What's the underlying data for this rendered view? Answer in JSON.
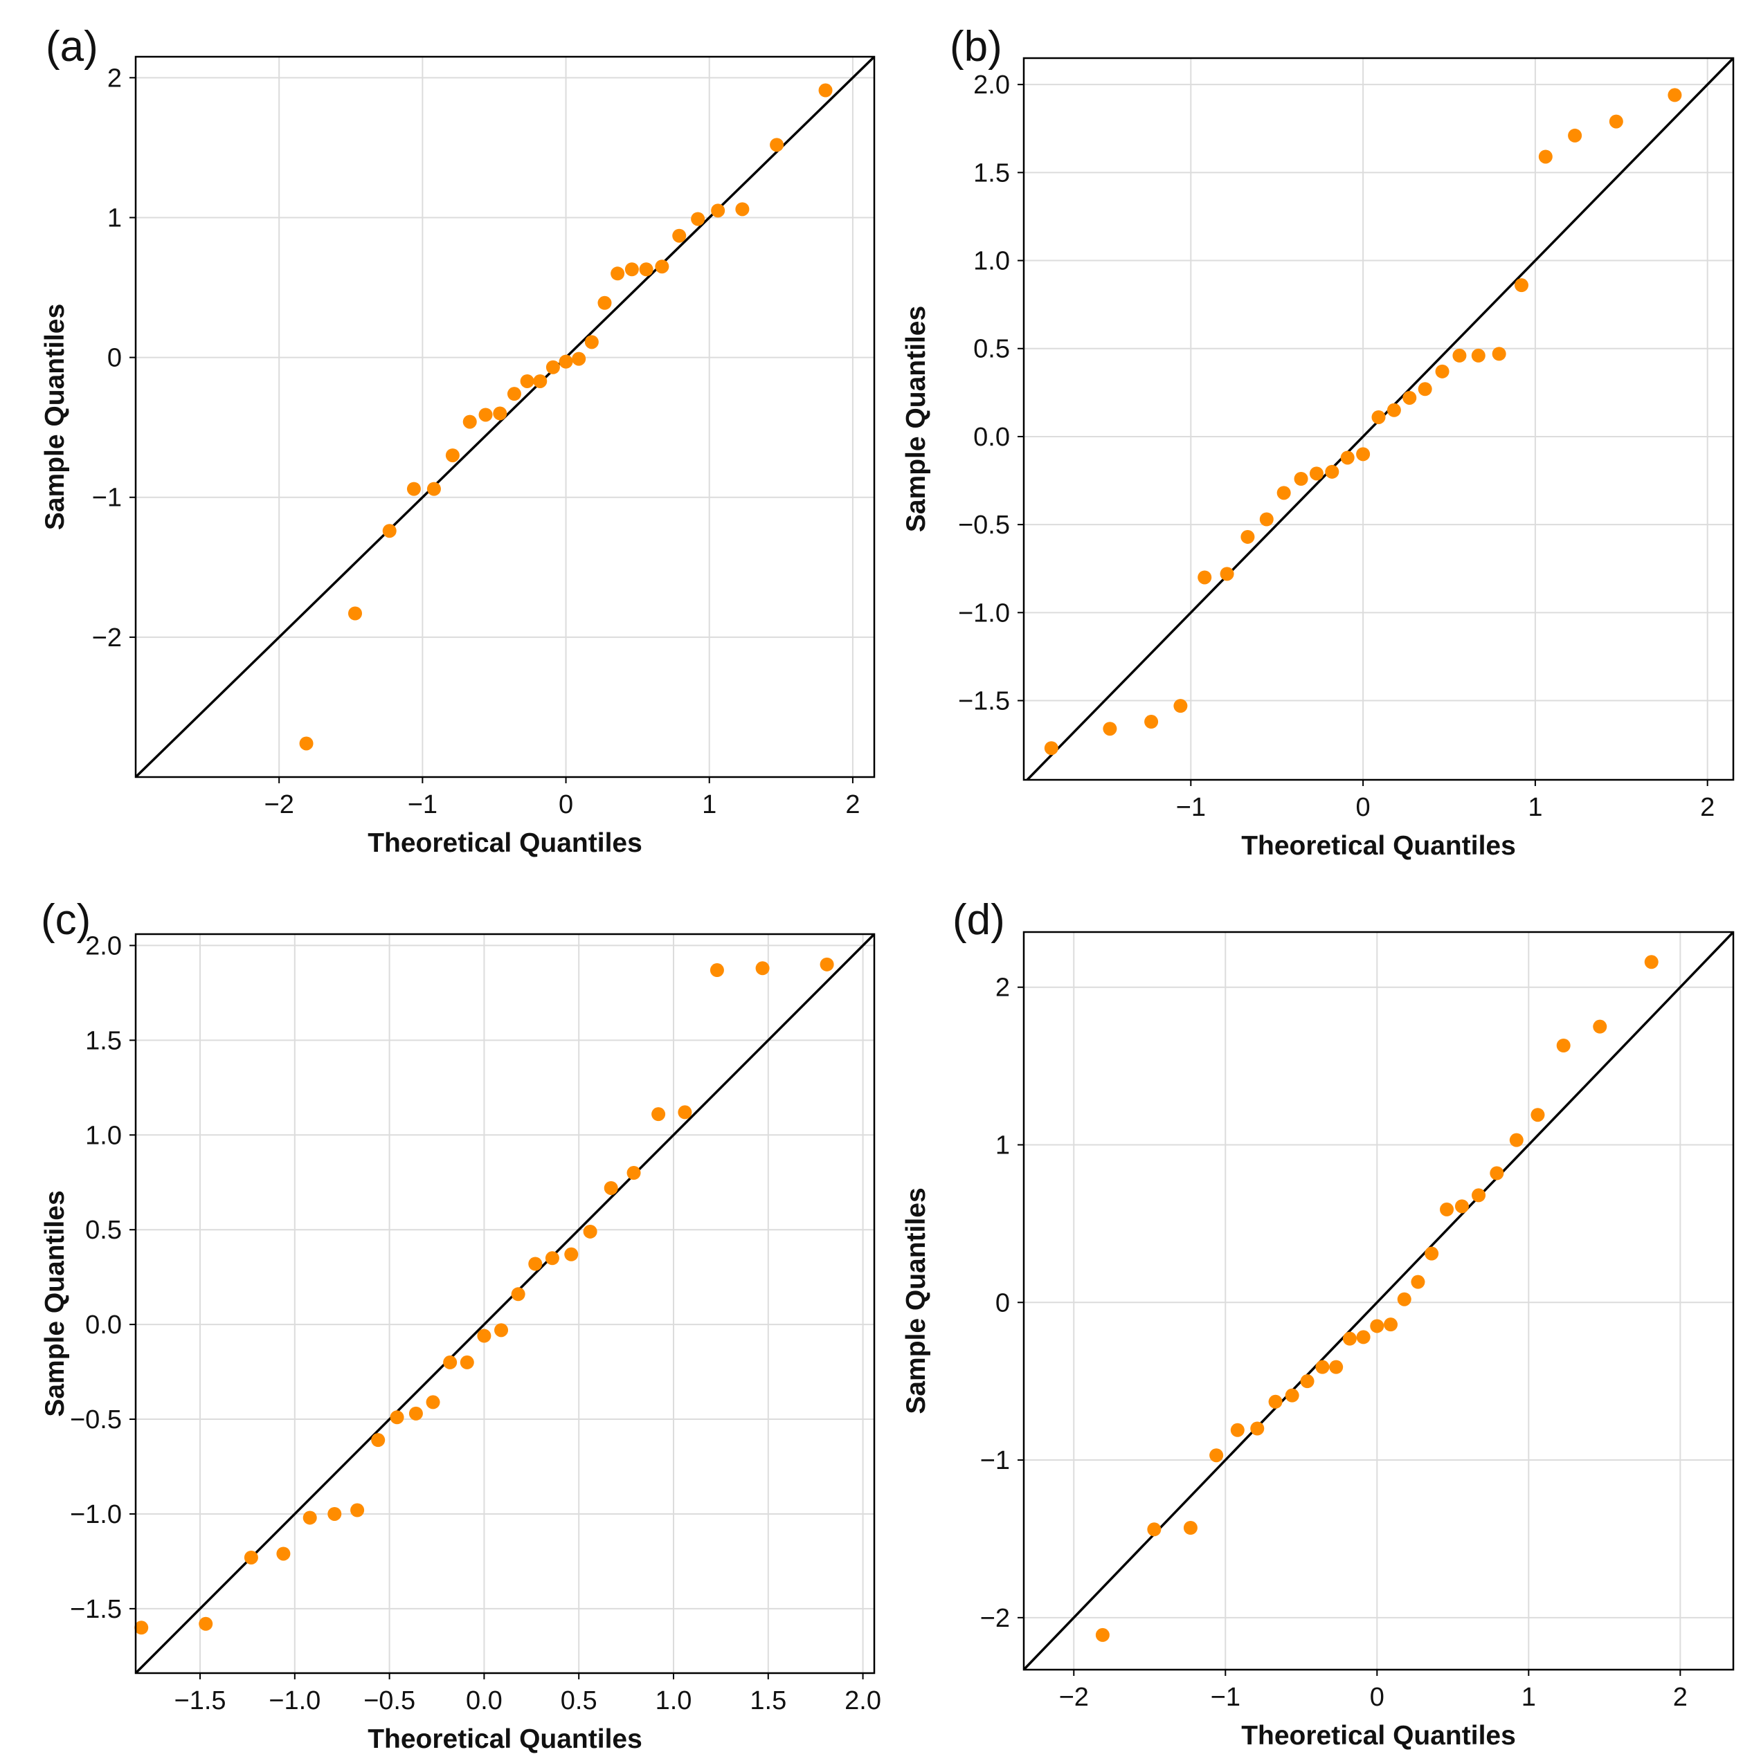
{
  "colors": {
    "point": "#FF8C00",
    "line": "#000000",
    "grid": "#dcdcdc"
  },
  "chart_data": [
    {
      "type": "scatter",
      "panel_label": "(a)",
      "xlabel": "Theoretical Quantiles",
      "ylabel": "Sample Quantiles",
      "xlim": [
        -3.0,
        2.15
      ],
      "ylim": [
        -3.0,
        2.15
      ],
      "xticks": [
        -2,
        -1,
        0,
        1,
        2
      ],
      "xtick_labels": [
        "−2",
        "−1",
        "0",
        "1",
        "2"
      ],
      "yticks": [
        -2,
        -1,
        0,
        1,
        2
      ],
      "ytick_labels": [
        "−2",
        "−1",
        "0",
        "1",
        "2"
      ],
      "grid": true,
      "reference_line": "y = x",
      "points": [
        [
          -1.81,
          -2.76
        ],
        [
          -1.47,
          -1.83
        ],
        [
          -1.23,
          -1.24
        ],
        [
          -1.06,
          -0.94
        ],
        [
          -0.92,
          -0.94
        ],
        [
          -0.79,
          -0.7
        ],
        [
          -0.67,
          -0.46
        ],
        [
          -0.56,
          -0.41
        ],
        [
          -0.46,
          -0.4
        ],
        [
          -0.36,
          -0.26
        ],
        [
          -0.27,
          -0.17
        ],
        [
          -0.18,
          -0.17
        ],
        [
          -0.09,
          -0.07
        ],
        [
          0.0,
          -0.03
        ],
        [
          0.09,
          -0.01
        ],
        [
          0.18,
          0.11
        ],
        [
          0.27,
          0.39
        ],
        [
          0.36,
          0.6
        ],
        [
          0.46,
          0.63
        ],
        [
          0.56,
          0.63
        ],
        [
          0.67,
          0.65
        ],
        [
          0.79,
          0.87
        ],
        [
          0.92,
          0.99
        ],
        [
          1.06,
          1.05
        ],
        [
          1.23,
          1.06
        ],
        [
          1.47,
          1.52
        ],
        [
          1.81,
          1.91
        ]
      ]
    },
    {
      "type": "scatter",
      "panel_label": "(b)",
      "xlabel": "Theoretical Quantiles",
      "ylabel": "Sample Quantiles",
      "xlim": [
        -1.97,
        2.15
      ],
      "ylim": [
        -1.95,
        2.15
      ],
      "xticks": [
        -1,
        0,
        1,
        2
      ],
      "xtick_labels": [
        "−1",
        "0",
        "1",
        "2"
      ],
      "yticks": [
        -1.5,
        -1.0,
        -0.5,
        0.0,
        0.5,
        1.0,
        1.5,
        2.0
      ],
      "ytick_labels": [
        "−1.5",
        "−1.0",
        "−0.5",
        "0.0",
        "0.5",
        "1.0",
        "1.5",
        "2.0"
      ],
      "grid": true,
      "reference_line": "y = x",
      "points": [
        [
          -1.81,
          -1.77
        ],
        [
          -1.47,
          -1.66
        ],
        [
          -1.23,
          -1.62
        ],
        [
          -1.06,
          -1.53
        ],
        [
          -0.92,
          -0.8
        ],
        [
          -0.79,
          -0.78
        ],
        [
          -0.67,
          -0.57
        ],
        [
          -0.56,
          -0.47
        ],
        [
          -0.46,
          -0.32
        ],
        [
          -0.36,
          -0.24
        ],
        [
          -0.27,
          -0.21
        ],
        [
          -0.18,
          -0.2
        ],
        [
          -0.09,
          -0.12
        ],
        [
          0.0,
          -0.1
        ],
        [
          0.09,
          0.11
        ],
        [
          0.18,
          0.15
        ],
        [
          0.27,
          0.22
        ],
        [
          0.36,
          0.27
        ],
        [
          0.46,
          0.37
        ],
        [
          0.56,
          0.46
        ],
        [
          0.67,
          0.46
        ],
        [
          0.79,
          0.47
        ],
        [
          0.92,
          0.86
        ],
        [
          1.06,
          1.59
        ],
        [
          1.23,
          1.71
        ],
        [
          1.47,
          1.79
        ],
        [
          1.81,
          1.94
        ]
      ]
    },
    {
      "type": "scatter",
      "panel_label": "(c)",
      "xlabel": "Theoretical Quantiles",
      "ylabel": "Sample Quantiles",
      "xlim": [
        -1.84,
        2.06
      ],
      "ylim": [
        -1.84,
        2.06
      ],
      "xticks": [
        -1.5,
        -1.0,
        -0.5,
        0.0,
        0.5,
        1.0,
        1.5,
        2.0
      ],
      "xtick_labels": [
        "−1.5",
        "−1.0",
        "−0.5",
        "0.0",
        "0.5",
        "1.0",
        "1.5",
        "2.0"
      ],
      "yticks": [
        -1.5,
        -1.0,
        -0.5,
        0.0,
        0.5,
        1.0,
        1.5,
        2.0
      ],
      "ytick_labels": [
        "−1.5",
        "−1.0",
        "−0.5",
        "0.0",
        "0.5",
        "1.0",
        "1.5",
        "2.0"
      ],
      "grid": true,
      "reference_line": "y = x",
      "points": [
        [
          -1.81,
          -1.6
        ],
        [
          -1.47,
          -1.58
        ],
        [
          -1.23,
          -1.23
        ],
        [
          -1.06,
          -1.21
        ],
        [
          -0.92,
          -1.02
        ],
        [
          -0.79,
          -1.0
        ],
        [
          -0.67,
          -0.98
        ],
        [
          -0.56,
          -0.61
        ],
        [
          -0.46,
          -0.49
        ],
        [
          -0.36,
          -0.47
        ],
        [
          -0.27,
          -0.41
        ],
        [
          -0.18,
          -0.2
        ],
        [
          -0.09,
          -0.2
        ],
        [
          0.0,
          -0.06
        ],
        [
          0.09,
          -0.03
        ],
        [
          0.18,
          0.16
        ],
        [
          0.27,
          0.32
        ],
        [
          0.36,
          0.35
        ],
        [
          0.46,
          0.37
        ],
        [
          0.56,
          0.49
        ],
        [
          0.67,
          0.72
        ],
        [
          0.79,
          0.8
        ],
        [
          0.92,
          1.11
        ],
        [
          1.06,
          1.12
        ],
        [
          1.23,
          1.87
        ],
        [
          1.47,
          1.88
        ],
        [
          1.81,
          1.9
        ]
      ]
    },
    {
      "type": "scatter",
      "panel_label": "(d)",
      "xlabel": "Theoretical Quantiles",
      "ylabel": "Sample Quantiles",
      "xlim": [
        -2.33,
        2.35
      ],
      "ylim": [
        -2.33,
        2.35
      ],
      "xticks": [
        -2,
        -1,
        0,
        1,
        2
      ],
      "xtick_labels": [
        "−2",
        "−1",
        "0",
        "1",
        "2"
      ],
      "yticks": [
        -2,
        -1,
        0,
        1,
        2
      ],
      "ytick_labels": [
        "−2",
        "−1",
        "0",
        "1",
        "2"
      ],
      "grid": true,
      "reference_line": "y = x",
      "points": [
        [
          -1.81,
          -2.11
        ],
        [
          -1.47,
          -1.44
        ],
        [
          -1.23,
          -1.43
        ],
        [
          -1.06,
          -0.97
        ],
        [
          -0.92,
          -0.81
        ],
        [
          -0.79,
          -0.8
        ],
        [
          -0.67,
          -0.63
        ],
        [
          -0.56,
          -0.59
        ],
        [
          -0.46,
          -0.5
        ],
        [
          -0.36,
          -0.41
        ],
        [
          -0.27,
          -0.41
        ],
        [
          -0.18,
          -0.23
        ],
        [
          -0.09,
          -0.22
        ],
        [
          0.0,
          -0.15
        ],
        [
          0.09,
          -0.14
        ],
        [
          0.18,
          0.02
        ],
        [
          0.27,
          0.13
        ],
        [
          0.36,
          0.31
        ],
        [
          0.46,
          0.59
        ],
        [
          0.56,
          0.61
        ],
        [
          0.67,
          0.68
        ],
        [
          0.79,
          0.82
        ],
        [
          0.92,
          1.03
        ],
        [
          1.06,
          1.19
        ],
        [
          1.23,
          1.63
        ],
        [
          1.47,
          1.75
        ],
        [
          1.81,
          2.16
        ]
      ]
    }
  ]
}
